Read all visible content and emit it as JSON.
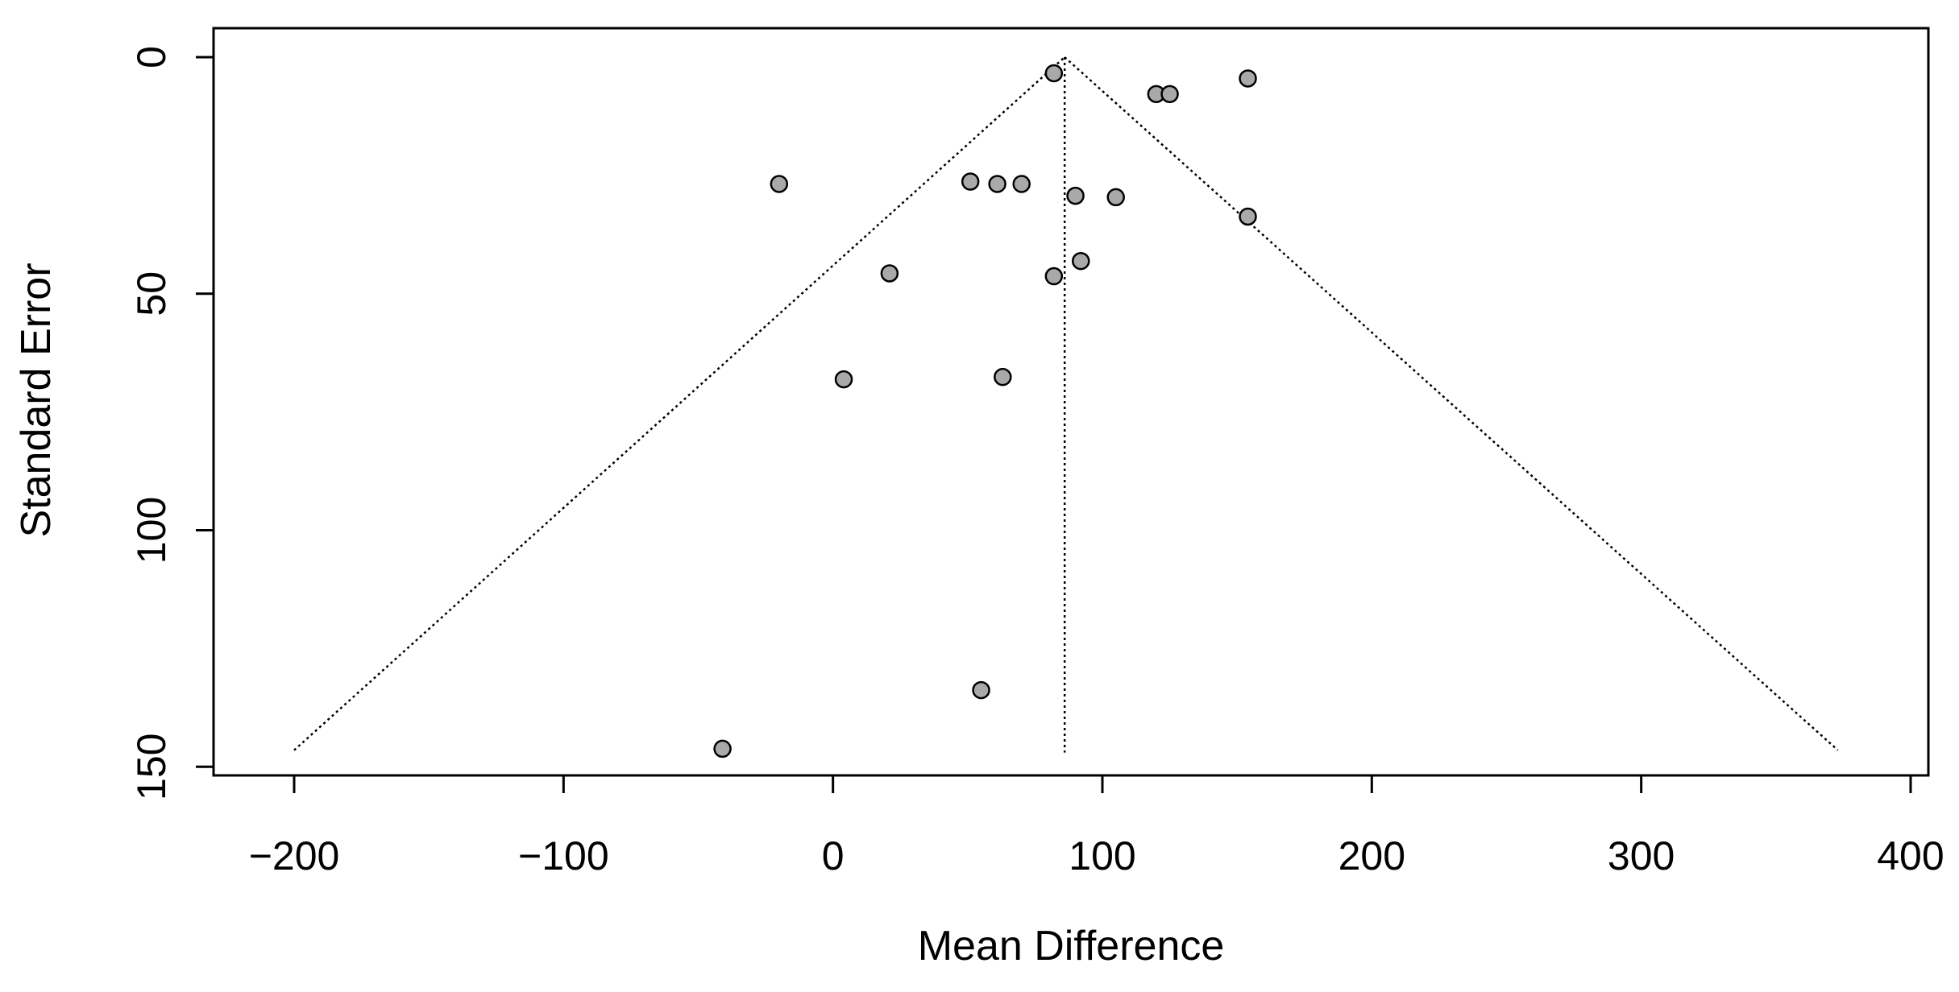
{
  "chart_data": {
    "type": "scatter",
    "subtype": "funnel-plot",
    "title": "",
    "xlabel": "Mean Difference",
    "ylabel": "Standard Error",
    "xlim": [
      -230,
      405
    ],
    "ylim": [
      0,
      152
    ],
    "y_reversed": true,
    "x_ticks": [
      -200,
      -100,
      0,
      100,
      200,
      300,
      400
    ],
    "x_tick_labels": [
      "−200",
      "−100",
      "0",
      "100",
      "200",
      "300",
      "400"
    ],
    "y_ticks": [
      0,
      50,
      100,
      150
    ],
    "y_tick_labels": [
      "0",
      "50",
      "100",
      "150"
    ],
    "grid": false,
    "legend": "none",
    "pooled_estimate": 86,
    "funnel_apex": {
      "x": 86,
      "y": 0
    },
    "funnel_base": {
      "y": 146.5,
      "x_left": -200,
      "x_right": 373
    },
    "center_line": {
      "x": 86,
      "y_from": 0,
      "y_to": 147
    },
    "points": [
      {
        "x": 82,
        "y": 3.4
      },
      {
        "x": 154,
        "y": 4.5
      },
      {
        "x": 120,
        "y": 7.8
      },
      {
        "x": 125,
        "y": 7.8
      },
      {
        "x": -20,
        "y": 26.8
      },
      {
        "x": 51,
        "y": 26.3
      },
      {
        "x": 61,
        "y": 26.8
      },
      {
        "x": 70,
        "y": 26.8
      },
      {
        "x": 90,
        "y": 29.3
      },
      {
        "x": 105,
        "y": 29.6
      },
      {
        "x": 154,
        "y": 33.7
      },
      {
        "x": 21,
        "y": 45.7
      },
      {
        "x": 82,
        "y": 46.3
      },
      {
        "x": 92,
        "y": 43.1
      },
      {
        "x": 4,
        "y": 68.1
      },
      {
        "x": 63,
        "y": 67.6
      },
      {
        "x": 55,
        "y": 133.8
      },
      {
        "x": -41,
        "y": 146.2
      }
    ],
    "colors": {
      "point_fill": "#a9a9a9",
      "point_stroke": "#000000",
      "lines": "#000000"
    }
  }
}
